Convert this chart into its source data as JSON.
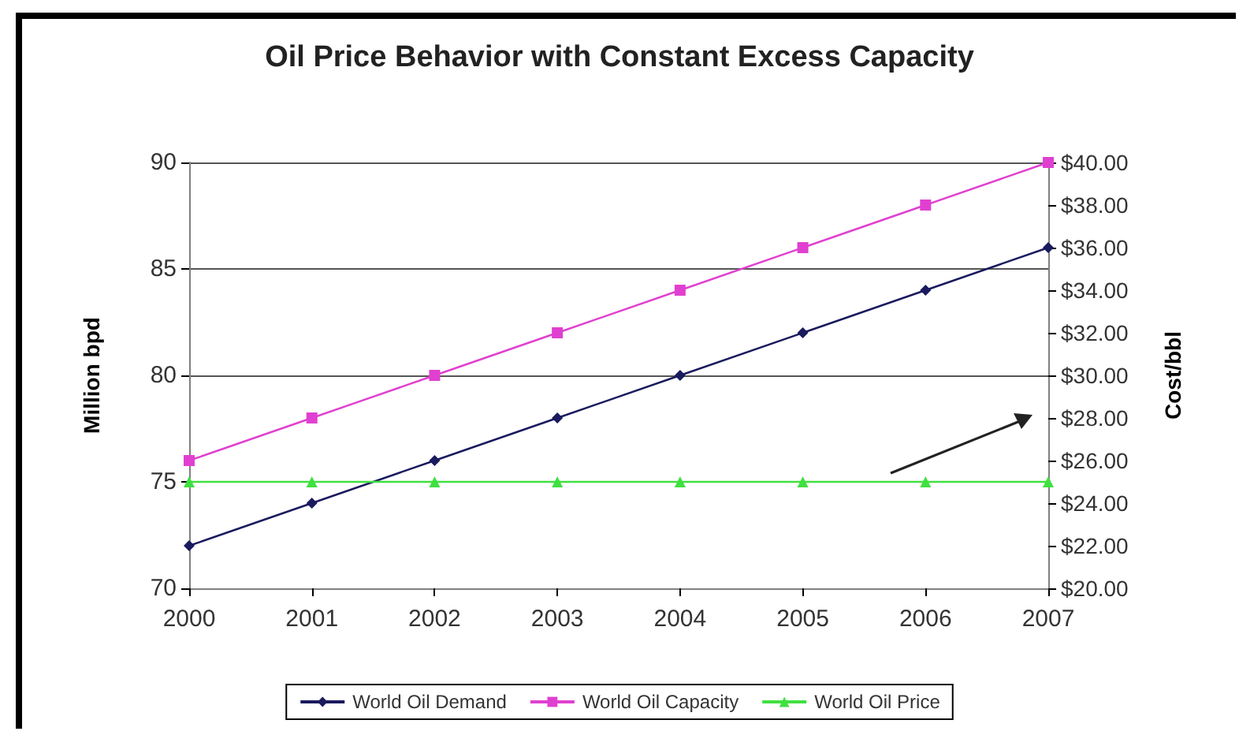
{
  "chart_data": {
    "type": "line",
    "title": "Oil Price Behavior with Constant Excess Capacity",
    "ylabel": "Million bpd",
    "y2label": "Cost/bbl",
    "x": [
      2000,
      2001,
      2002,
      2003,
      2004,
      2005,
      2006,
      2007
    ],
    "xlim": [
      2000,
      2007
    ],
    "xticks": [
      2000,
      2001,
      2002,
      2003,
      2004,
      2005,
      2006,
      2007
    ],
    "ylim": [
      70,
      90
    ],
    "yticks": [
      70,
      75,
      80,
      85,
      90
    ],
    "y2lim": [
      20,
      40
    ],
    "y2ticks": [
      {
        "value": 20,
        "label": "$20.00"
      },
      {
        "value": 22,
        "label": "$22.00"
      },
      {
        "value": 24,
        "label": "$24.00"
      },
      {
        "value": 26,
        "label": "$26.00"
      },
      {
        "value": 28,
        "label": "$28.00"
      },
      {
        "value": 30,
        "label": "$30.00"
      },
      {
        "value": 32,
        "label": "$32.00"
      },
      {
        "value": 34,
        "label": "$34.00"
      },
      {
        "value": 36,
        "label": "$36.00"
      },
      {
        "value": 38,
        "label": "$38.00"
      },
      {
        "value": 40,
        "label": "$40.00"
      }
    ],
    "series": [
      {
        "name": "World Oil Demand",
        "color": "#1a1a5e",
        "marker": "diamond",
        "values": [
          72,
          74,
          76,
          78,
          80,
          82,
          84,
          86
        ]
      },
      {
        "name": "World Oil Capacity",
        "color": "#e040d0",
        "marker": "square",
        "values": [
          76,
          78,
          80,
          82,
          84,
          86,
          88,
          90
        ]
      },
      {
        "name": "World Oil Price",
        "color": "#40e040",
        "marker": "triangle",
        "axis": "y2",
        "values": [
          25,
          25,
          25,
          25,
          25,
          25,
          25,
          25
        ]
      }
    ],
    "grid": "y",
    "legend": "bottom",
    "line_style": "solid"
  }
}
